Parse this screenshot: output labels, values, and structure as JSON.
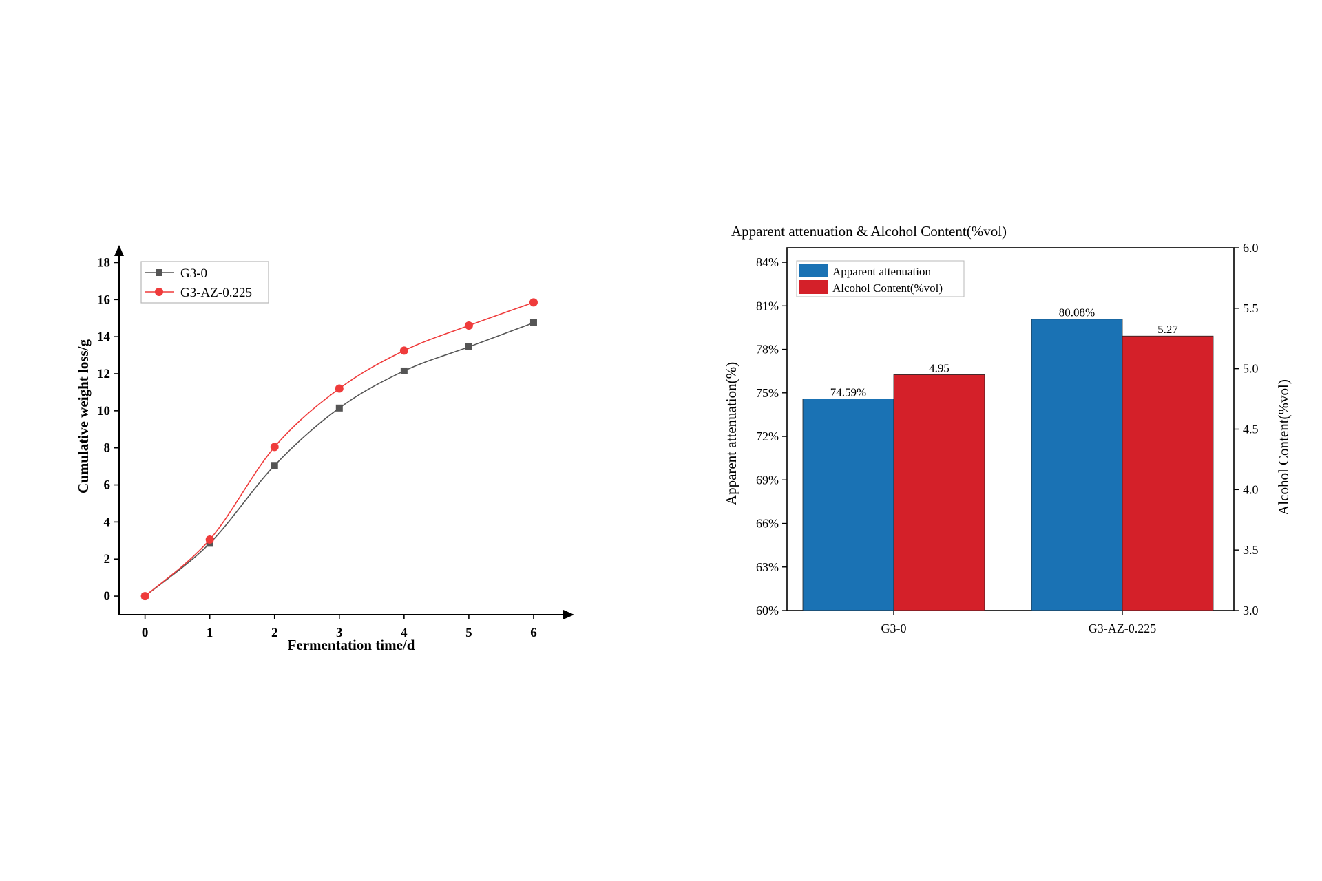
{
  "chart_data": [
    {
      "type": "line",
      "title": "",
      "xlabel": "Fermentation time/d",
      "ylabel": "Cumulative weight loss/g",
      "x": [
        0,
        1,
        2,
        3,
        4,
        5,
        6
      ],
      "xlim": [
        -0.4,
        6.5
      ],
      "ylim": [
        -1,
        18.5
      ],
      "xticks": [
        "0",
        "1",
        "2",
        "3",
        "4",
        "5",
        "6"
      ],
      "yticks": [
        "0",
        "2",
        "4",
        "6",
        "8",
        "10",
        "12",
        "14",
        "16",
        "18"
      ],
      "grid": false,
      "legend_position": "top-left",
      "series": [
        {
          "name": "G3-0",
          "values": [
            0,
            2.85,
            7.05,
            10.15,
            12.15,
            13.45,
            14.75
          ],
          "color": "#555555",
          "marker": "square"
        },
        {
          "name": "G3-AZ-0.225",
          "values": [
            0,
            3.05,
            8.05,
            11.2,
            13.25,
            14.6,
            15.85
          ],
          "color": "#ef3b3b",
          "marker": "circle"
        }
      ]
    },
    {
      "type": "bar",
      "title": "Apparent attenuation & Alcohol Content(%vol)",
      "xlabel": "",
      "ylabel": "Apparent attenuation(%)",
      "y2label": "Alcohol Content(%vol)",
      "categories": [
        "G3-0",
        "G3-AZ-0.225"
      ],
      "ylim": [
        60,
        85
      ],
      "y2lim": [
        3.0,
        6.0
      ],
      "yticks": [
        "60%",
        "63%",
        "66%",
        "69%",
        "72%",
        "75%",
        "78%",
        "81%",
        "84%"
      ],
      "y2ticks": [
        "3.0",
        "3.5",
        "4.0",
        "4.5",
        "5.0",
        "5.5",
        "6.0"
      ],
      "grid": false,
      "legend_position": "top-left",
      "series": [
        {
          "name": "Apparent attenuation",
          "axis": "left",
          "values": [
            74.59,
            80.08
          ],
          "labels": [
            "74.59%",
            "80.08%"
          ],
          "color": "#1a72b4"
        },
        {
          "name": "Alcohol Content(%vol)",
          "axis": "right",
          "values": [
            4.95,
            5.27
          ],
          "labels": [
            "4.95",
            "5.27"
          ],
          "color": "#d42029"
        }
      ]
    }
  ]
}
